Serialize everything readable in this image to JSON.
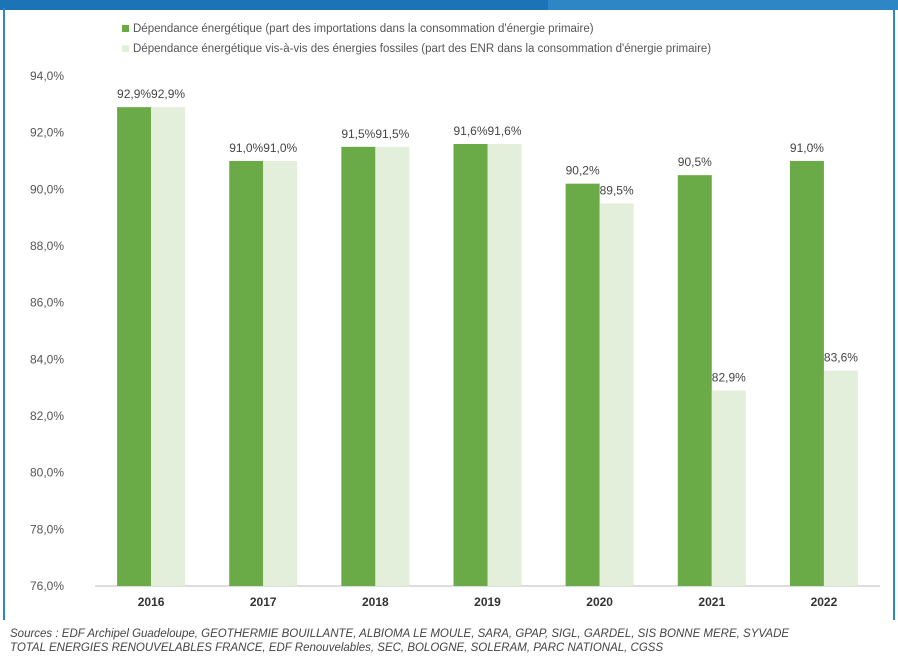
{
  "sources": {
    "line1": "Sources : EDF Archipel Guadeloupe, GÉOTHERMIE BOUILLANTE, ALBIOMA LE MOULE, SARA, GPAP, SIGL, GARDEL, SIS BONNE MERE, SYVADE",
    "line2": "TOTAL ÉNERGIES RENOUVELABLES FRANCE, EDF Renouvelables, SEC, BOLOGNE, SOLERAM, PARC NATIONAL, CGSS"
  },
  "colors": {
    "banner": "#2f86c4",
    "series1": "#6aab47",
    "series2": "#e3eedb"
  },
  "chart_data": {
    "type": "bar",
    "categories": [
      "2016",
      "2017",
      "2018",
      "2019",
      "2020",
      "2021",
      "2022"
    ],
    "series": [
      {
        "name": "Dépendance énergétique (part des importations dans la consommation d'énergie primaire)",
        "values": [
          92.9,
          91.0,
          91.5,
          91.6,
          90.2,
          90.5,
          91.0
        ],
        "labels": [
          "92,9%",
          "91,0%",
          "91,5%",
          "91,6%",
          "90,2%",
          "90,5%",
          "91,0%"
        ],
        "color": "#6aab47"
      },
      {
        "name": "Dépendance énergétique vis-à-vis des énergies fossiles (part des ENR dans la consommation d'énergie primaire)",
        "values": [
          92.9,
          91.0,
          91.5,
          91.6,
          89.5,
          82.9,
          83.6
        ],
        "labels": [
          "92,9%",
          "91,0%",
          "91,5%",
          "91,6%",
          "89,5%",
          "82,9%",
          "83,6%"
        ],
        "color": "#e3eedb"
      }
    ],
    "ylim": [
      76,
      94
    ],
    "yticks": [
      94,
      92,
      90,
      88,
      86,
      84,
      82,
      80,
      78,
      76
    ],
    "ytick_labels": [
      "94,0%",
      "92,0%",
      "90,0%",
      "88,0%",
      "86,0%",
      "84,0%",
      "82,0%",
      "80,0%",
      "78,0%",
      "76,0%"
    ],
    "grid": false,
    "legend": "top"
  }
}
